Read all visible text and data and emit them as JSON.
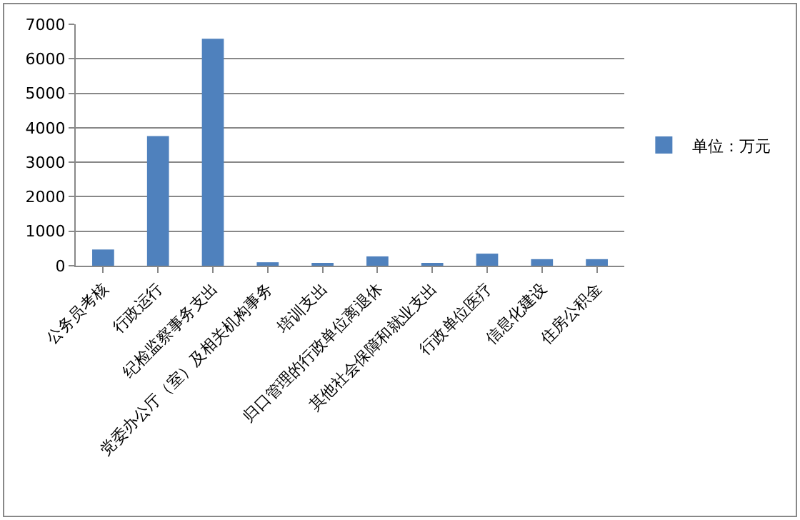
{
  "chart_data": {
    "type": "bar",
    "categories": [
      "公务员考核",
      "行政运行",
      "纪检监察事务支出",
      "党委办公厅（室）及相关机构事务",
      "培训支出",
      "归口管理的行政单位离退休",
      "其他社会保障和就业支出",
      "行政单位医疗",
      "信息化建设",
      "住房公积金"
    ],
    "series": [
      {
        "name": "单位：万元",
        "color": "#4f81bd",
        "values": [
          470,
          3760,
          6580,
          100,
          50,
          270,
          50,
          350,
          190,
          190
        ]
      }
    ],
    "ylim": [
      0,
      7000
    ],
    "yticks": [
      0,
      1000,
      2000,
      3000,
      4000,
      5000,
      6000,
      7000
    ],
    "grid": "y",
    "legend": "right"
  }
}
